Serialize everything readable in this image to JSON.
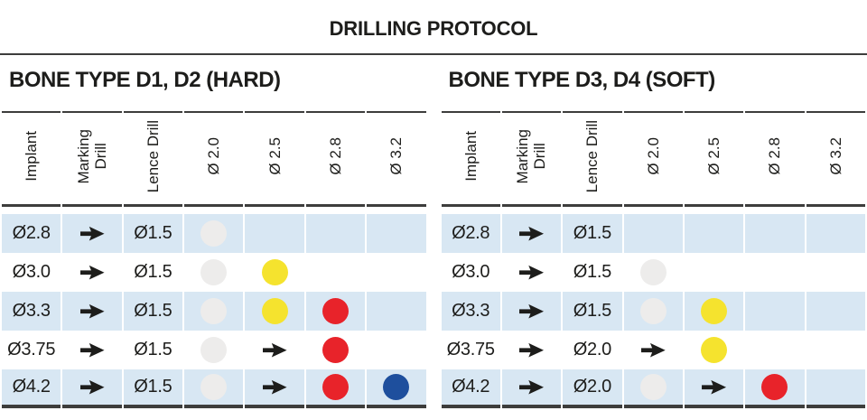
{
  "title": "DRILLING PROTOCOL",
  "columns": [
    "Implant",
    "Marking\nDrill",
    "Lence Drill",
    "Ø 2.0",
    "Ø 2.5",
    "Ø 2.8",
    "Ø 3.2"
  ],
  "icons": {
    "marking": "right-arrow-icon",
    "step_marker": "drill-dot"
  },
  "colors": {
    "text": "#1d1d1b",
    "line": "#3d3d3c",
    "row_highlight": "#d8e7f3",
    "dot_gray": "#edeceb",
    "dot_yellow": "#f5e32e",
    "dot_red": "#e8232a",
    "dot_blue": "#1e4f9d"
  },
  "tables": [
    {
      "heading": "BONE TYPE D1, D2 (HARD)",
      "rows": [
        {
          "implant": "Ø2.8",
          "marking": "arrow",
          "lence": "Ø1.5",
          "steps": [
            "dot-gray",
            "",
            "",
            ""
          ]
        },
        {
          "implant": "Ø3.0",
          "marking": "arrow",
          "lence": "Ø1.5",
          "steps": [
            "dot-gray",
            "dot-yellow",
            "",
            ""
          ]
        },
        {
          "implant": "Ø3.3",
          "marking": "arrow",
          "lence": "Ø1.5",
          "steps": [
            "dot-gray",
            "dot-yellow",
            "dot-red",
            ""
          ]
        },
        {
          "implant": "Ø3.75",
          "marking": "arrow",
          "lence": "Ø1.5",
          "steps": [
            "dot-gray",
            "arrow",
            "dot-red",
            ""
          ]
        },
        {
          "implant": "Ø4.2",
          "marking": "arrow",
          "lence": "Ø1.5",
          "steps": [
            "dot-gray",
            "arrow",
            "dot-red",
            "dot-blue"
          ]
        }
      ]
    },
    {
      "heading": "BONE TYPE D3, D4 (SOFT)",
      "rows": [
        {
          "implant": "Ø2.8",
          "marking": "arrow",
          "lence": "Ø1.5",
          "steps": [
            "",
            "",
            "",
            ""
          ]
        },
        {
          "implant": "Ø3.0",
          "marking": "arrow",
          "lence": "Ø1.5",
          "steps": [
            "dot-gray",
            "",
            "",
            ""
          ]
        },
        {
          "implant": "Ø3.3",
          "marking": "arrow",
          "lence": "Ø1.5",
          "steps": [
            "dot-gray",
            "dot-yellow",
            "",
            ""
          ]
        },
        {
          "implant": "Ø3.75",
          "marking": "arrow",
          "lence": "Ø2.0",
          "steps": [
            "arrow",
            "dot-yellow",
            "",
            ""
          ]
        },
        {
          "implant": "Ø4.2",
          "marking": "arrow",
          "lence": "Ø2.0",
          "steps": [
            "dot-gray",
            "arrow",
            "dot-red",
            ""
          ]
        }
      ]
    }
  ]
}
